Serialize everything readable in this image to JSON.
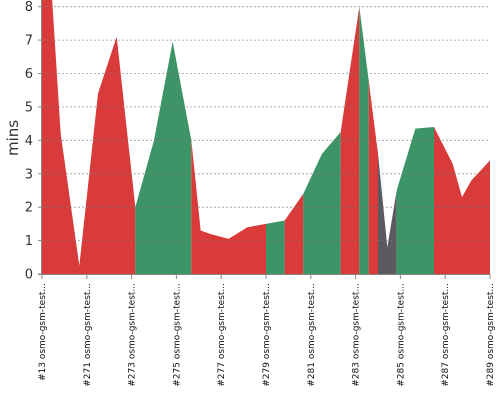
{
  "chart_data": {
    "type": "area",
    "ylabel": "mins",
    "xlabel": "",
    "ylim": [
      0,
      8.2
    ],
    "yticks": [
      0,
      1,
      2,
      3,
      4,
      5,
      6,
      7,
      8
    ],
    "grid": "horizontal-dashed",
    "status_colors": {
      "failure": "#d93a3a",
      "success": "#3d9466",
      "aborted": "#5a5a60"
    },
    "x_labels": [
      "#13 osmo-gsm-test...",
      "#271 osmo-gsm-test...",
      "#273 osmo-gsm-test...",
      "#275 osmo-gsm-test...",
      "#277 osmo-gsm-test...",
      "#279 osmo-gsm-test...",
      "#281 osmo-gsm-test...",
      "#283 osmo-gsm-test...",
      "#285 osmo-gsm-test...",
      "#287 osmo-gsm-test...",
      "#289 osmo-gsm-test..."
    ],
    "points": [
      {
        "x": 0.0,
        "y": 8.6
      },
      {
        "x": 0.5,
        "y": 8.6
      },
      {
        "x": 1.0,
        "y": 4.2
      },
      {
        "x": 2.0,
        "y": 0.25
      },
      {
        "x": 3.0,
        "y": 5.4
      },
      {
        "x": 4.0,
        "y": 7.1
      },
      {
        "x": 5.0,
        "y": 2.0
      },
      {
        "x": 6.0,
        "y": 4.0
      },
      {
        "x": 7.0,
        "y": 6.95
      },
      {
        "x": 8.0,
        "y": 4.0
      },
      {
        "x": 8.5,
        "y": 1.3
      },
      {
        "x": 9.0,
        "y": 1.2
      },
      {
        "x": 10.0,
        "y": 1.05
      },
      {
        "x": 11.0,
        "y": 1.4
      },
      {
        "x": 12.0,
        "y": 1.5
      },
      {
        "x": 13.0,
        "y": 1.6
      },
      {
        "x": 14.0,
        "y": 2.4
      },
      {
        "x": 15.0,
        "y": 3.6
      },
      {
        "x": 16.0,
        "y": 4.25
      },
      {
        "x": 17.0,
        "y": 8.0
      },
      {
        "x": 18.0,
        "y": 3.6
      },
      {
        "x": 18.5,
        "y": 0.8
      },
      {
        "x": 19.0,
        "y": 2.5
      },
      {
        "x": 20.0,
        "y": 4.35
      },
      {
        "x": 21.0,
        "y": 4.4
      },
      {
        "x": 22.0,
        "y": 3.3
      },
      {
        "x": 22.5,
        "y": 2.3
      },
      {
        "x": 23.0,
        "y": 2.8
      },
      {
        "x": 24.0,
        "y": 3.4
      }
    ],
    "segments": [
      {
        "from": 0.0,
        "to": 5.0,
        "status": "failure"
      },
      {
        "from": 5.0,
        "to": 8.0,
        "status": "success"
      },
      {
        "from": 8.0,
        "to": 12.0,
        "status": "failure"
      },
      {
        "from": 12.0,
        "to": 13.0,
        "status": "success"
      },
      {
        "from": 13.0,
        "to": 14.0,
        "status": "failure"
      },
      {
        "from": 14.0,
        "to": 16.0,
        "status": "success"
      },
      {
        "from": 16.0,
        "to": 17.0,
        "status": "failure"
      },
      {
        "from": 17.0,
        "to": 17.5,
        "status": "success"
      },
      {
        "from": 17.5,
        "to": 18.0,
        "status": "failure"
      },
      {
        "from": 18.0,
        "to": 19.0,
        "status": "aborted"
      },
      {
        "from": 19.0,
        "to": 21.0,
        "status": "success"
      },
      {
        "from": 21.0,
        "to": 24.0,
        "status": "failure"
      }
    ]
  }
}
